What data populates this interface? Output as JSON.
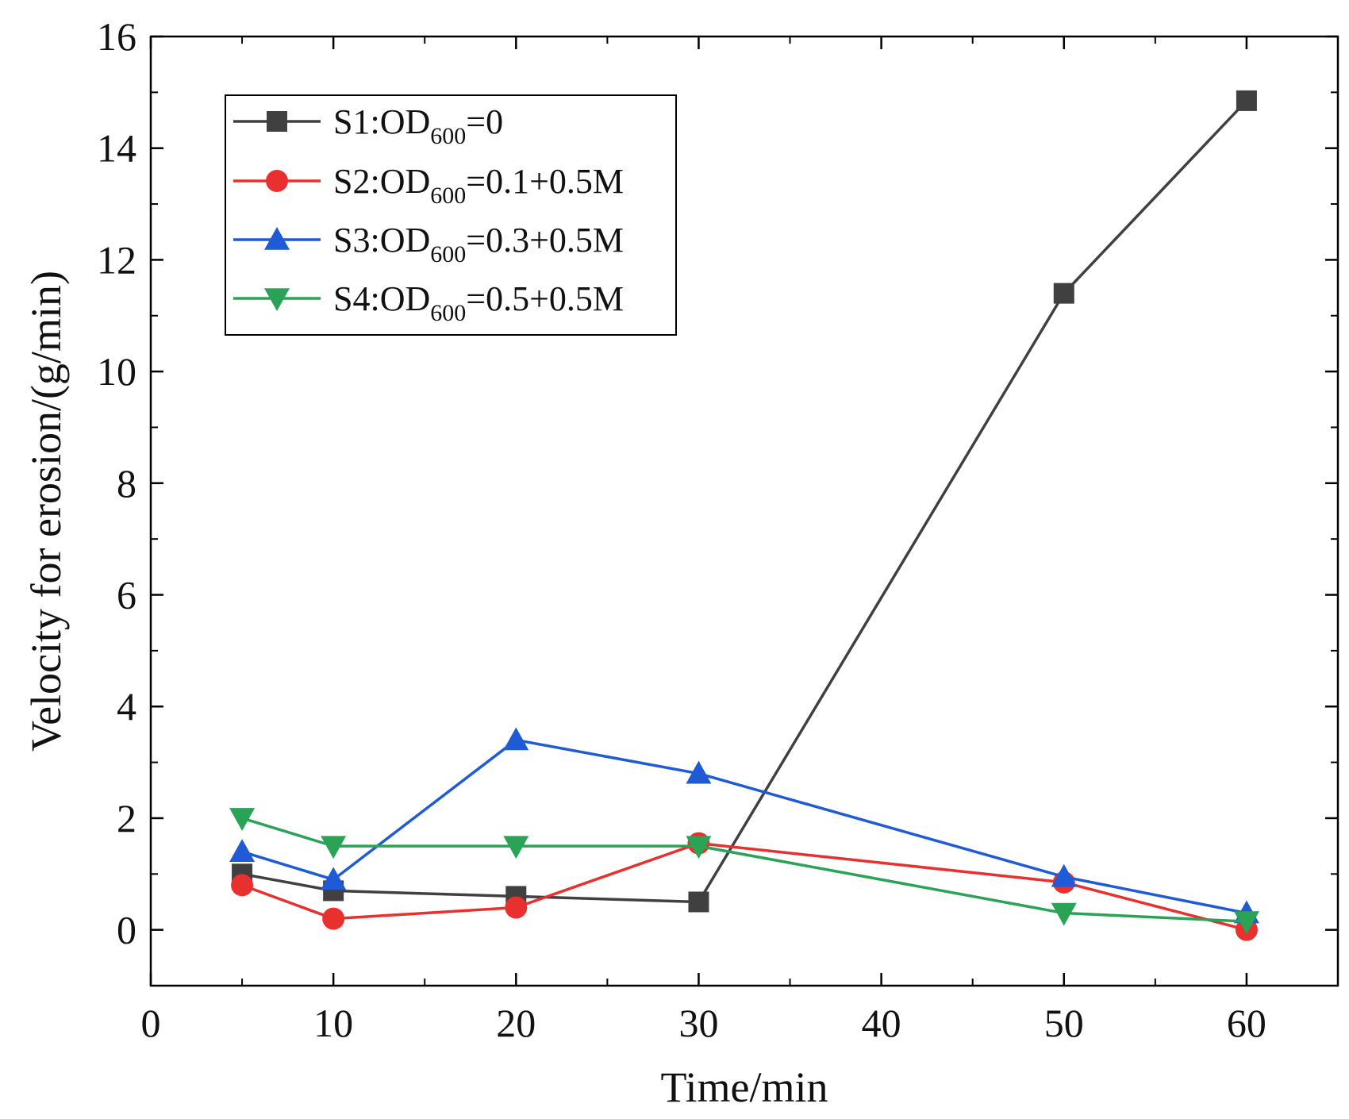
{
  "chart_data": {
    "type": "line",
    "title": "",
    "xlabel": "Time/min",
    "ylabel": "Velocity for erosion/(g/min)",
    "xlim": [
      0,
      65
    ],
    "ylim": [
      -1,
      16
    ],
    "xticks": [
      0,
      10,
      20,
      30,
      40,
      50,
      60
    ],
    "yticks": [
      0,
      2,
      4,
      6,
      8,
      10,
      12,
      14,
      16
    ],
    "x": [
      5,
      10,
      20,
      30,
      50,
      60
    ],
    "legend_position": "top-left",
    "series": [
      {
        "name": "S1:OD600=0",
        "label_pre": "S1:OD",
        "label_sub": "600",
        "label_post": "=0",
        "color": "#404040",
        "marker": "square",
        "values": [
          1.0,
          0.7,
          0.6,
          0.5,
          11.4,
          14.85
        ]
      },
      {
        "name": "S2:OD600=0.1+0.5M",
        "label_pre": "S2:OD",
        "label_sub": "600",
        "label_post": "=0.1+0.5M",
        "color": "#e8312f",
        "marker": "circle",
        "values": [
          0.8,
          0.2,
          0.4,
          1.55,
          0.85,
          0.0
        ]
      },
      {
        "name": "S3:OD600=0.3+0.5M",
        "label_pre": "S3:OD",
        "label_sub": "600",
        "label_post": "=0.3+0.5M",
        "color": "#1f5bd6",
        "marker": "triangle-up",
        "values": [
          1.4,
          0.9,
          3.4,
          2.8,
          0.95,
          0.3
        ]
      },
      {
        "name": "S4:OD600=0.5+0.5M",
        "label_pre": "S4:OD",
        "label_sub": "600",
        "label_post": "=0.5+0.5M",
        "color": "#2aa356",
        "marker": "triangle-down",
        "values": [
          2.0,
          1.5,
          1.5,
          1.5,
          0.3,
          0.15
        ]
      }
    ]
  }
}
